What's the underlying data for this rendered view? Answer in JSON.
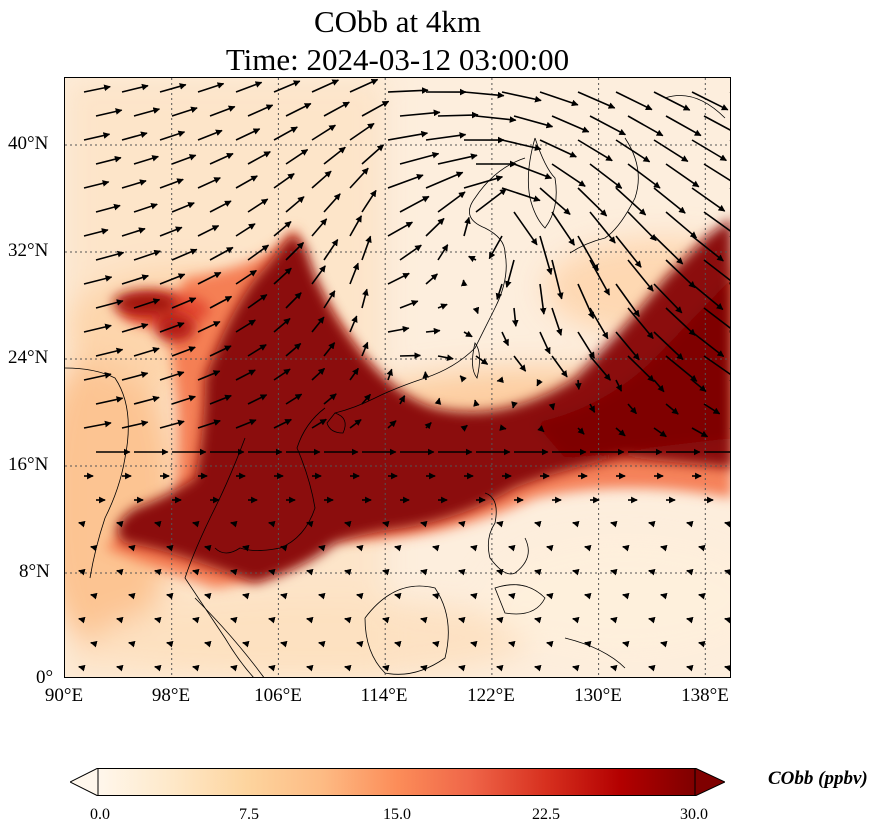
{
  "title": {
    "line1": "CObb at 4km",
    "line2": "Time: 2024-03-12 03:00:00"
  },
  "map": {
    "extent": {
      "lon_min": 90,
      "lon_max": 140,
      "lat_min": 0,
      "lat_max": 45
    },
    "lat_ticks": [
      "40°N",
      "32°N",
      "24°N",
      "16°N",
      "8°N",
      "0°"
    ],
    "lon_ticks": [
      "90°E",
      "98°E",
      "106°E",
      "114°E",
      "122°E",
      "130°E",
      "138°E"
    ],
    "gridlines": true,
    "variable": "CObb",
    "layers": [
      "CObb concentration shading",
      "wind vectors",
      "coastlines",
      "country borders"
    ]
  },
  "colorbar": {
    "label": "CObb (ppbv)",
    "ticks": [
      "0.0",
      "7.5",
      "15.0",
      "22.5",
      "30.0"
    ],
    "min": 0,
    "max": 30,
    "extend": "both",
    "colormap": [
      "#fff7ec",
      "#fee8c8",
      "#fdd49e",
      "#fdbb84",
      "#fc8d59",
      "#ef6548",
      "#d7301f",
      "#b30000",
      "#7f0000"
    ]
  },
  "colors": {
    "background_low": "#fdeedd",
    "plume_high": "#7f0000",
    "vector": "#000000",
    "coastline": "#000000"
  }
}
